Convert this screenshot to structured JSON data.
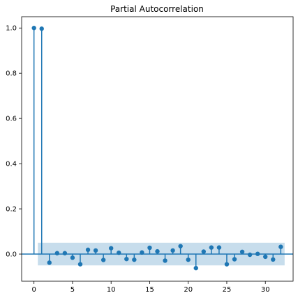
{
  "chart_data": {
    "type": "stem",
    "title": "Partial Autocorrelation",
    "xlabel": "",
    "ylabel": "",
    "xlim": [
      -1.6,
      33.6
    ],
    "ylim": [
      -0.12,
      1.05
    ],
    "xticks": [
      0,
      5,
      10,
      15,
      20,
      25,
      30
    ],
    "yticks": [
      0.0,
      0.2,
      0.4,
      0.6,
      0.8,
      1.0
    ],
    "lags": [
      0,
      1,
      2,
      3,
      4,
      5,
      6,
      7,
      8,
      9,
      10,
      11,
      12,
      13,
      14,
      15,
      16,
      17,
      18,
      19,
      20,
      21,
      22,
      23,
      24,
      25,
      26,
      27,
      28,
      29,
      30,
      31,
      32
    ],
    "values": [
      1.0,
      0.997,
      -0.038,
      0.004,
      0.004,
      -0.016,
      -0.045,
      0.019,
      0.016,
      -0.026,
      0.026,
      0.006,
      -0.022,
      -0.025,
      0.007,
      0.028,
      0.012,
      -0.029,
      0.016,
      0.035,
      -0.025,
      -0.062,
      0.011,
      0.029,
      0.029,
      -0.045,
      -0.023,
      0.01,
      -0.003,
      0.001,
      -0.012,
      -0.024,
      0.032
    ],
    "confidence_band": {
      "lag_start": 0.5,
      "lag_end": 32.5,
      "lower": -0.05,
      "upper": 0.05
    },
    "grid": false,
    "color": "#1f77b4",
    "band_color": "#1f77b4"
  }
}
